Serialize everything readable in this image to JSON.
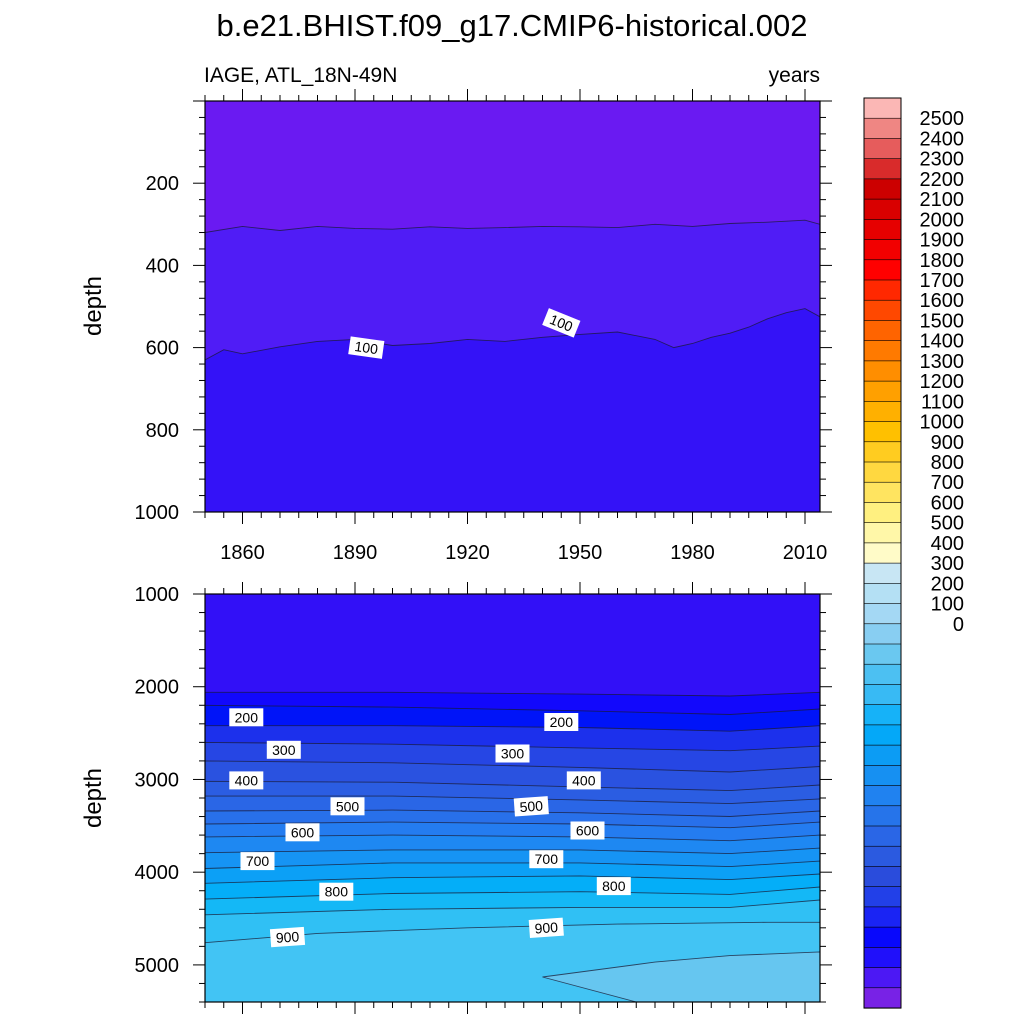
{
  "chart_data": {
    "type": "contour",
    "title": "b.e21.BHIST.f09_g17.CMIP6-historical.002",
    "left_subtitle": "IAGE, ATL_18N-49N",
    "right_subtitle": "years",
    "ylabel": "depth",
    "xlim": [
      1850,
      2014
    ],
    "x_ticks": [
      1860,
      1890,
      1920,
      1950,
      1980,
      2010
    ],
    "contour_interval": 50,
    "panels": [
      {
        "name": "upper",
        "ylim": [
          0,
          1000
        ],
        "y_ticks": [
          200,
          400,
          600,
          800,
          1000
        ],
        "show_x_tick_labels": true,
        "bands": [
          {
            "color": "#6a1af2",
            "upper_boundary": null
          },
          {
            "color": "#501cf6",
            "upper_boundary": {
              "x": [
                1850,
                1860,
                1870,
                1880,
                1890,
                1900,
                1910,
                1920,
                1930,
                1940,
                1950,
                1960,
                1970,
                1980,
                1990,
                2000,
                2010,
                2014
              ],
              "y": [
                320,
                305,
                315,
                305,
                310,
                312,
                306,
                310,
                308,
                305,
                306,
                308,
                300,
                305,
                298,
                295,
                290,
                300
              ]
            }
          },
          {
            "color": "#3412f7",
            "upper_boundary": {
              "x": [
                1850,
                1855,
                1860,
                1870,
                1880,
                1890,
                1900,
                1910,
                1920,
                1930,
                1940,
                1950,
                1960,
                1970,
                1975,
                1980,
                1985,
                1990,
                1995,
                2000,
                2005,
                2010,
                2014
              ],
              "y": [
                630,
                605,
                615,
                598,
                585,
                580,
                595,
                590,
                580,
                585,
                575,
                568,
                562,
                580,
                600,
                590,
                575,
                565,
                550,
                530,
                515,
                505,
                525
              ]
            }
          }
        ],
        "contour_labels": [
          {
            "text": "100",
            "x": 1893,
            "y": 600,
            "angle": 8
          },
          {
            "text": "100",
            "x": 1945,
            "y": 540,
            "angle": 22
          }
        ]
      },
      {
        "name": "lower",
        "ylim": [
          1000,
          5400
        ],
        "y_ticks": [
          1000,
          2000,
          3000,
          4000,
          5000
        ],
        "show_x_tick_labels": false,
        "bands": [
          {
            "color": "#3210f7",
            "upper_boundary": null
          },
          {
            "color": "#1208fc",
            "upper_boundary": {
              "x": [
                1850,
                1900,
                1950,
                1990,
                2014
              ],
              "y": [
                2060,
                2060,
                2080,
                2100,
                2060
              ]
            }
          },
          {
            "color": "#0014f8",
            "upper_boundary": {
              "x": [
                1850,
                1900,
                1950,
                1990,
                2014
              ],
              "y": [
                2200,
                2220,
                2260,
                2300,
                2240
              ]
            }
          },
          {
            "color": "#1c30ec",
            "upper_boundary": {
              "x": [
                1850,
                1900,
                1950,
                1990,
                2014
              ],
              "y": [
                2420,
                2420,
                2440,
                2480,
                2420
              ]
            }
          },
          {
            "color": "#2646e4",
            "upper_boundary": {
              "x": [
                1850,
                1900,
                1950,
                1990,
                2014
              ],
              "y": [
                2600,
                2620,
                2660,
                2690,
                2640
              ]
            }
          },
          {
            "color": "#2a52e0",
            "upper_boundary": {
              "x": [
                1850,
                1900,
                1950,
                1990,
                2014
              ],
              "y": [
                2800,
                2820,
                2870,
                2920,
                2860
              ]
            }
          },
          {
            "color": "#2b5de2",
            "upper_boundary": {
              "x": [
                1850,
                1900,
                1950,
                1990,
                2014
              ],
              "y": [
                3020,
                3030,
                3080,
                3120,
                3060
              ]
            }
          },
          {
            "color": "#2a66e6",
            "upper_boundary": {
              "x": [
                1850,
                1900,
                1950,
                1990,
                2014
              ],
              "y": [
                3180,
                3180,
                3220,
                3260,
                3210
              ]
            }
          },
          {
            "color": "#2870ea",
            "upper_boundary": {
              "x": [
                1850,
                1900,
                1950,
                1990,
                2014
              ],
              "y": [
                3340,
                3330,
                3360,
                3400,
                3340
              ]
            }
          },
          {
            "color": "#247cf0",
            "upper_boundary": {
              "x": [
                1850,
                1900,
                1950,
                1990,
                2014
              ],
              "y": [
                3480,
                3460,
                3480,
                3520,
                3460
              ]
            }
          },
          {
            "color": "#1e88f2",
            "upper_boundary": {
              "x": [
                1850,
                1900,
                1950,
                1990,
                2014
              ],
              "y": [
                3620,
                3600,
                3620,
                3660,
                3600
              ]
            }
          },
          {
            "color": "#1694f4",
            "upper_boundary": {
              "x": [
                1850,
                1900,
                1950,
                1990,
                2014
              ],
              "y": [
                3790,
                3760,
                3760,
                3800,
                3740
              ]
            }
          },
          {
            "color": "#0ca0f6",
            "upper_boundary": {
              "x": [
                1850,
                1900,
                1950,
                1990,
                2014
              ],
              "y": [
                3960,
                3900,
                3900,
                3940,
                3880
              ]
            }
          },
          {
            "color": "#04aef8",
            "upper_boundary": {
              "x": [
                1850,
                1900,
                1950,
                1990,
                2014
              ],
              "y": [
                4120,
                4060,
                4040,
                4080,
                4020
              ]
            }
          },
          {
            "color": "#14b8f6",
            "upper_boundary": {
              "x": [
                1850,
                1900,
                1950,
                1990,
                2014
              ],
              "y": [
                4290,
                4230,
                4210,
                4240,
                4160
              ]
            }
          },
          {
            "color": "#30c0f4",
            "upper_boundary": {
              "x": [
                1850,
                1900,
                1950,
                1990,
                2014
              ],
              "y": [
                4460,
                4400,
                4380,
                4380,
                4300
              ]
            }
          },
          {
            "color": "#42c4f4",
            "upper_boundary": {
              "x": [
                1850,
                1880,
                1920,
                1960,
                2000,
                2014
              ],
              "y": [
                4760,
                4660,
                4600,
                4560,
                4540,
                4540
              ]
            }
          },
          {
            "color": "#66c6f0",
            "polygon": {
              "x": [
                1940,
                1970,
                1990,
                2014,
                2014,
                1965
              ],
              "y": [
                5130,
                4970,
                4900,
                4860,
                5400,
                5400
              ]
            }
          }
        ],
        "contour_labels": [
          {
            "text": "200",
            "x": 1861,
            "y": 2330,
            "angle": 0
          },
          {
            "text": "200",
            "x": 1945,
            "y": 2380,
            "angle": 0
          },
          {
            "text": "300",
            "x": 1871,
            "y": 2680,
            "angle": 0
          },
          {
            "text": "300",
            "x": 1932,
            "y": 2720,
            "angle": 0
          },
          {
            "text": "400",
            "x": 1861,
            "y": 3010,
            "angle": 0
          },
          {
            "text": "400",
            "x": 1951,
            "y": 3010,
            "angle": 0
          },
          {
            "text": "500",
            "x": 1888,
            "y": 3290,
            "angle": 0
          },
          {
            "text": "500",
            "x": 1937,
            "y": 3290,
            "angle": -4
          },
          {
            "text": "600",
            "x": 1876,
            "y": 3570,
            "angle": 0
          },
          {
            "text": "600",
            "x": 1952,
            "y": 3550,
            "angle": 0
          },
          {
            "text": "700",
            "x": 1864,
            "y": 3880,
            "angle": 0
          },
          {
            "text": "700",
            "x": 1941,
            "y": 3860,
            "angle": 0
          },
          {
            "text": "800",
            "x": 1885,
            "y": 4210,
            "angle": 0
          },
          {
            "text": "800",
            "x": 1959,
            "y": 4150,
            "angle": 0
          },
          {
            "text": "900",
            "x": 1872,
            "y": 4700,
            "angle": -4
          },
          {
            "text": "900",
            "x": 1941,
            "y": 4600,
            "angle": -4
          }
        ]
      }
    ],
    "colorbar": {
      "labels": [
        "2500",
        "2400",
        "2300",
        "2200",
        "2100",
        "2000",
        "1900",
        "1800",
        "1700",
        "1600",
        "1500",
        "1400",
        "1300",
        "1200",
        "1100",
        "1000",
        "900",
        "800",
        "700",
        "600",
        "500",
        "400",
        "300",
        "200",
        "100",
        "0"
      ],
      "colors": [
        "#fbb7b5",
        "#ef8683",
        "#e65c5c",
        "#d92b2b",
        "#cc0000",
        "#d90000",
        "#e60000",
        "#f20000",
        "#ff0000",
        "#ff2800",
        "#ff4800",
        "#ff6400",
        "#ff7a00",
        "#ff8e00",
        "#ffa000",
        "#ffb000",
        "#ffc000",
        "#ffcc20",
        "#ffd840",
        "#ffe460",
        "#fff080",
        "#fff7a8",
        "#fffbc8",
        "#c8e6f4",
        "#b4e0f4",
        "#a4d8f4",
        "#88cef2",
        "#6ac8f0",
        "#4cc0f2",
        "#38baf4",
        "#16b2f8",
        "#04a8f8",
        "#0c9cf4",
        "#1690f2",
        "#2082f0",
        "#2674ea",
        "#2a66e6",
        "#2b5ae0",
        "#2a4cdc",
        "#2240e8",
        "#1a24f4",
        "#0808fc",
        "#2010fa",
        "#4c18f4",
        "#7822e6"
      ]
    }
  }
}
